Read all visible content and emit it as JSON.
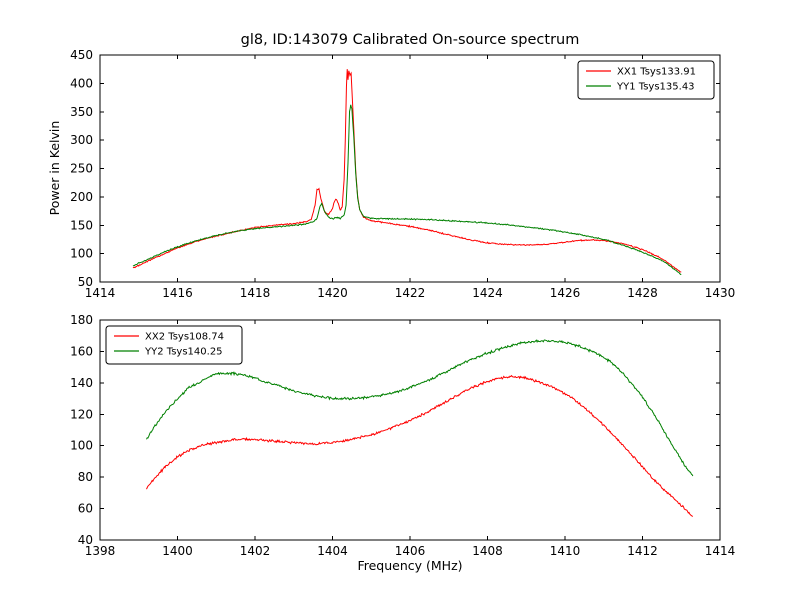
{
  "chart_data": [
    {
      "type": "line",
      "title": "gl8, ID:143079 Calibrated On-source spectrum",
      "xlabel": "",
      "ylabel": "Power in Kelvin",
      "xlim": [
        1414,
        1430
      ],
      "ylim": [
        50,
        450
      ],
      "xticks": [
        1414,
        1416,
        1418,
        1420,
        1422,
        1424,
        1426,
        1428,
        1430
      ],
      "yticks": [
        50,
        100,
        150,
        200,
        250,
        300,
        350,
        400,
        450
      ],
      "grid": false,
      "legend_position": "top-right",
      "series": [
        {
          "name": "XX1 Tsys133.91",
          "color": "#ff0000",
          "points": [
            [
              1414.85,
              74
            ],
            [
              1415.0,
              79
            ],
            [
              1415.3,
              89
            ],
            [
              1415.6,
              98
            ],
            [
              1416.0,
              110
            ],
            [
              1416.5,
              122
            ],
            [
              1417.0,
              131
            ],
            [
              1417.5,
              139
            ],
            [
              1418.0,
              146
            ],
            [
              1418.5,
              150
            ],
            [
              1419.0,
              153
            ],
            [
              1419.3,
              156
            ],
            [
              1419.45,
              160
            ],
            [
              1419.55,
              185
            ],
            [
              1419.6,
              213
            ],
            [
              1419.65,
              214
            ],
            [
              1419.7,
              197
            ],
            [
              1419.8,
              173
            ],
            [
              1419.9,
              169
            ],
            [
              1420.0,
              180
            ],
            [
              1420.05,
              192
            ],
            [
              1420.1,
              196
            ],
            [
              1420.15,
              188
            ],
            [
              1420.2,
              176
            ],
            [
              1420.25,
              183
            ],
            [
              1420.3,
              230
            ],
            [
              1420.33,
              300
            ],
            [
              1420.36,
              395
            ],
            [
              1420.38,
              425
            ],
            [
              1420.4,
              405
            ],
            [
              1420.42,
              422
            ],
            [
              1420.45,
              415
            ],
            [
              1420.48,
              418
            ],
            [
              1420.5,
              390
            ],
            [
              1420.55,
              320
            ],
            [
              1420.6,
              245
            ],
            [
              1420.65,
              200
            ],
            [
              1420.7,
              178
            ],
            [
              1420.8,
              164
            ],
            [
              1421.0,
              158
            ],
            [
              1421.5,
              153
            ],
            [
              1422.0,
              148
            ],
            [
              1422.5,
              141
            ],
            [
              1423.0,
              133
            ],
            [
              1423.5,
              125
            ],
            [
              1424.0,
              119
            ],
            [
              1424.5,
              116
            ],
            [
              1425.0,
              115
            ],
            [
              1425.5,
              116
            ],
            [
              1426.0,
              120
            ],
            [
              1426.3,
              123
            ],
            [
              1426.7,
              124
            ],
            [
              1427.0,
              123
            ],
            [
              1427.3,
              120
            ],
            [
              1427.6,
              116
            ],
            [
              1428.0,
              107
            ],
            [
              1428.4,
              95
            ],
            [
              1428.7,
              82
            ],
            [
              1429.0,
              67
            ]
          ]
        },
        {
          "name": "YY1 Tsys135.43",
          "color": "#008000",
          "points": [
            [
              1414.85,
              78
            ],
            [
              1415.0,
              83
            ],
            [
              1415.3,
              92
            ],
            [
              1415.6,
              101
            ],
            [
              1416.0,
              112
            ],
            [
              1416.5,
              123
            ],
            [
              1417.0,
              132
            ],
            [
              1417.5,
              139
            ],
            [
              1418.0,
              144
            ],
            [
              1418.5,
              147
            ],
            [
              1419.0,
              150
            ],
            [
              1419.3,
              152
            ],
            [
              1419.5,
              156
            ],
            [
              1419.6,
              162
            ],
            [
              1419.68,
              183
            ],
            [
              1419.72,
              188
            ],
            [
              1419.8,
              174
            ],
            [
              1419.9,
              164
            ],
            [
              1420.0,
              161
            ],
            [
              1420.1,
              164
            ],
            [
              1420.2,
              162
            ],
            [
              1420.3,
              168
            ],
            [
              1420.35,
              185
            ],
            [
              1420.4,
              260
            ],
            [
              1420.44,
              350
            ],
            [
              1420.47,
              362
            ],
            [
              1420.5,
              355
            ],
            [
              1420.55,
              305
            ],
            [
              1420.6,
              240
            ],
            [
              1420.65,
              198
            ],
            [
              1420.7,
              178
            ],
            [
              1420.8,
              166
            ],
            [
              1421.0,
              162
            ],
            [
              1421.5,
              161
            ],
            [
              1422.0,
              161
            ],
            [
              1422.5,
              160
            ],
            [
              1423.0,
              158
            ],
            [
              1423.5,
              156
            ],
            [
              1424.0,
              154
            ],
            [
              1424.5,
              151
            ],
            [
              1425.0,
              147
            ],
            [
              1425.5,
              143
            ],
            [
              1426.0,
              138
            ],
            [
              1426.5,
              132
            ],
            [
              1427.0,
              125
            ],
            [
              1427.4,
              117
            ],
            [
              1427.8,
              108
            ],
            [
              1428.2,
              97
            ],
            [
              1428.6,
              84
            ],
            [
              1429.0,
              63
            ]
          ]
        }
      ]
    },
    {
      "type": "line",
      "title": "",
      "xlabel": "Frequency (MHz)",
      "ylabel": "",
      "xlim": [
        1398,
        1414
      ],
      "ylim": [
        40,
        180
      ],
      "xticks": [
        1398,
        1400,
        1402,
        1404,
        1406,
        1408,
        1410,
        1412,
        1414
      ],
      "yticks": [
        40,
        60,
        80,
        100,
        120,
        140,
        160,
        180
      ],
      "grid": false,
      "legend_position": "top-left",
      "series": [
        {
          "name": "XX2 Tsys108.74",
          "color": "#ff0000",
          "points": [
            [
              1399.2,
              73
            ],
            [
              1399.4,
              79
            ],
            [
              1399.7,
              87
            ],
            [
              1400.0,
              93
            ],
            [
              1400.3,
              97
            ],
            [
              1400.6,
              100
            ],
            [
              1401.0,
              102
            ],
            [
              1401.5,
              104
            ],
            [
              1402.0,
              104
            ],
            [
              1402.5,
              103
            ],
            [
              1403.0,
              102
            ],
            [
              1403.5,
              101
            ],
            [
              1404.0,
              102
            ],
            [
              1404.5,
              104
            ],
            [
              1405.0,
              107
            ],
            [
              1405.5,
              111
            ],
            [
              1406.0,
              116
            ],
            [
              1406.5,
              122
            ],
            [
              1407.0,
              129
            ],
            [
              1407.5,
              136
            ],
            [
              1408.0,
              141
            ],
            [
              1408.3,
              143
            ],
            [
              1408.6,
              144
            ],
            [
              1409.0,
              143
            ],
            [
              1409.4,
              140
            ],
            [
              1409.8,
              136
            ],
            [
              1410.2,
              130
            ],
            [
              1410.6,
              122
            ],
            [
              1411.0,
              113
            ],
            [
              1411.4,
              103
            ],
            [
              1411.8,
              92
            ],
            [
              1412.2,
              81
            ],
            [
              1412.6,
              71
            ],
            [
              1413.0,
              62
            ],
            [
              1413.3,
              55
            ]
          ]
        },
        {
          "name": "YY2 Tsys140.25",
          "color": "#008000",
          "points": [
            [
              1399.2,
              104
            ],
            [
              1399.4,
              112
            ],
            [
              1399.7,
              122
            ],
            [
              1400.0,
              130
            ],
            [
              1400.3,
              137
            ],
            [
              1400.6,
              141
            ],
            [
              1400.9,
              145
            ],
            [
              1401.1,
              146
            ],
            [
              1401.4,
              146
            ],
            [
              1401.7,
              145
            ],
            [
              1402.0,
              143
            ],
            [
              1402.5,
              139
            ],
            [
              1403.0,
              135
            ],
            [
              1403.5,
              132
            ],
            [
              1404.0,
              130
            ],
            [
              1404.5,
              130
            ],
            [
              1405.0,
              131
            ],
            [
              1405.5,
              133
            ],
            [
              1406.0,
              137
            ],
            [
              1406.5,
              142
            ],
            [
              1407.0,
              148
            ],
            [
              1407.5,
              154
            ],
            [
              1408.0,
              159
            ],
            [
              1408.5,
              163
            ],
            [
              1409.0,
              166
            ],
            [
              1409.5,
              167
            ],
            [
              1410.0,
              166
            ],
            [
              1410.4,
              163
            ],
            [
              1410.8,
              159
            ],
            [
              1411.2,
              153
            ],
            [
              1411.5,
              146
            ],
            [
              1412.0,
              131
            ],
            [
              1412.4,
              116
            ],
            [
              1412.8,
              99
            ],
            [
              1413.1,
              87
            ],
            [
              1413.3,
              81
            ]
          ]
        }
      ]
    }
  ]
}
